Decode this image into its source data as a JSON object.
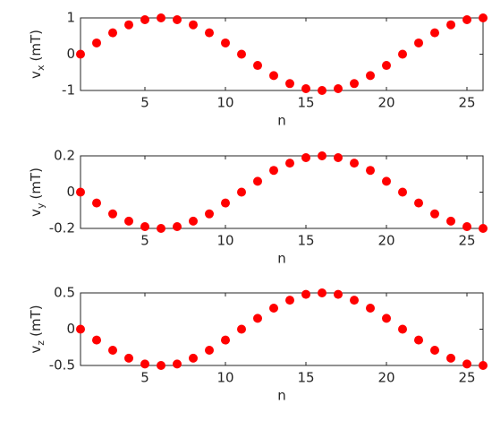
{
  "chart_data": [
    {
      "type": "scatter",
      "xlabel": "n",
      "ylabel": {
        "main": "v",
        "sub": "x",
        "unit": "(mT)"
      },
      "x": [
        1,
        2,
        3,
        4,
        5,
        6,
        7,
        8,
        9,
        10,
        11,
        12,
        13,
        14,
        15,
        16,
        17,
        18,
        19,
        20,
        21,
        22,
        23,
        24,
        25,
        26
      ],
      "values": [
        0,
        0.31,
        0.59,
        0.81,
        0.95,
        1,
        0.95,
        0.81,
        0.59,
        0.31,
        0,
        -0.31,
        -0.59,
        -0.81,
        -0.95,
        -1,
        -0.95,
        -0.81,
        -0.59,
        -0.31,
        0,
        0.31,
        0.59,
        0.81,
        0.95,
        1
      ],
      "color": "#ff0000",
      "xlim": [
        1,
        26
      ],
      "xticks": [
        5,
        10,
        15,
        20,
        25
      ],
      "ylim": [
        -1,
        1
      ],
      "yticks": [
        -1,
        0,
        1
      ]
    },
    {
      "type": "scatter",
      "xlabel": "n",
      "ylabel": {
        "main": "v",
        "sub": "y",
        "unit": "(mT)"
      },
      "x": [
        1,
        2,
        3,
        4,
        5,
        6,
        7,
        8,
        9,
        10,
        11,
        12,
        13,
        14,
        15,
        16,
        17,
        18,
        19,
        20,
        21,
        22,
        23,
        24,
        25,
        26
      ],
      "values": [
        0,
        -0.06,
        -0.12,
        -0.16,
        -0.19,
        -0.2,
        -0.19,
        -0.16,
        -0.12,
        -0.06,
        0,
        0.06,
        0.12,
        0.16,
        0.19,
        0.2,
        0.19,
        0.16,
        0.12,
        0.06,
        0,
        -0.06,
        -0.12,
        -0.16,
        -0.19,
        -0.2
      ],
      "color": "#ff0000",
      "xlim": [
        1,
        26
      ],
      "xticks": [
        5,
        10,
        15,
        20,
        25
      ],
      "ylim": [
        -0.2,
        0.2
      ],
      "yticks": [
        -0.2,
        0,
        0.2
      ]
    },
    {
      "type": "scatter",
      "xlabel": "n",
      "ylabel": {
        "main": "v",
        "sub": "z",
        "unit": "(mT)"
      },
      "x": [
        1,
        2,
        3,
        4,
        5,
        6,
        7,
        8,
        9,
        10,
        11,
        12,
        13,
        14,
        15,
        16,
        17,
        18,
        19,
        20,
        21,
        22,
        23,
        24,
        25,
        26
      ],
      "values": [
        0,
        -0.15,
        -0.29,
        -0.4,
        -0.48,
        -0.5,
        -0.48,
        -0.4,
        -0.29,
        -0.15,
        0,
        0.15,
        0.29,
        0.4,
        0.48,
        0.5,
        0.48,
        0.4,
        0.29,
        0.15,
        0,
        -0.15,
        -0.29,
        -0.4,
        -0.48,
        -0.5
      ],
      "color": "#ff0000",
      "xlim": [
        1,
        26
      ],
      "xticks": [
        5,
        10,
        15,
        20,
        25
      ],
      "ylim": [
        -0.5,
        0.5
      ],
      "yticks": [
        -0.5,
        0,
        0.5
      ]
    }
  ]
}
